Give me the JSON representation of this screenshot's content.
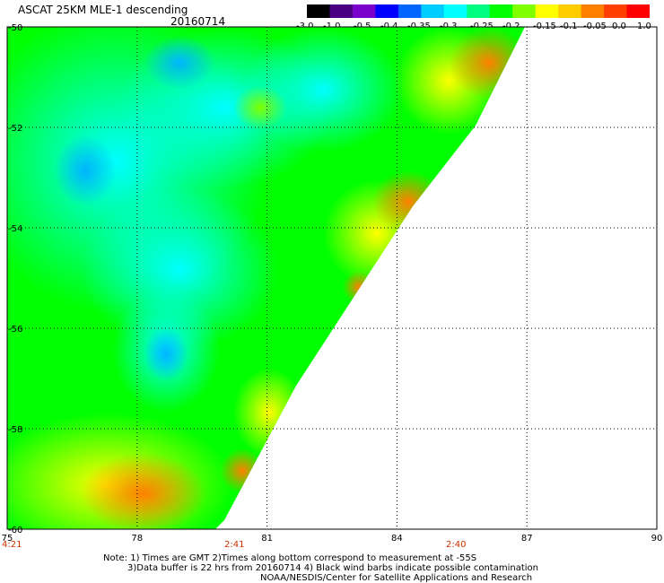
{
  "header": {
    "title": "ASCAT 25KM MLE-1 descending",
    "date": "20160714"
  },
  "colorbar": {
    "labels": [
      "-3.0",
      "-1.0",
      "-0.5",
      "-0.4",
      "-0.35",
      "-0.3",
      "-0.25",
      "-0.2",
      "-0.15",
      "-0.1",
      "-0.05",
      "0.0",
      "1.0"
    ],
    "colors": [
      "#000000",
      "#4b0082",
      "#7a00cc",
      "#0000ff",
      "#0066ff",
      "#00ccff",
      "#00ffff",
      "#00ff80",
      "#00ff00",
      "#80ff00",
      "#ffff00",
      "#ffcc00",
      "#ff8000",
      "#ff4000",
      "#ff0000"
    ]
  },
  "axes": {
    "x_ticks": [
      "75",
      "78",
      "81",
      "84",
      "87",
      "90"
    ],
    "y_ticks": [
      "-50",
      "-52",
      "-54",
      "-56",
      "-58",
      "-60"
    ]
  },
  "time_labels": [
    "4:21",
    "2:41",
    "2:40"
  ],
  "notes": {
    "line1": "Note: 1) Times are GMT 2)Times along bottom correspond to measurement at -55S",
    "line2": "3)Data buffer is 22 hrs from 20160714 4) Black wind barbs indicate possible contamination",
    "line3": "NOAA/NESDIS/Center for Satellite Applications and Research"
  }
}
